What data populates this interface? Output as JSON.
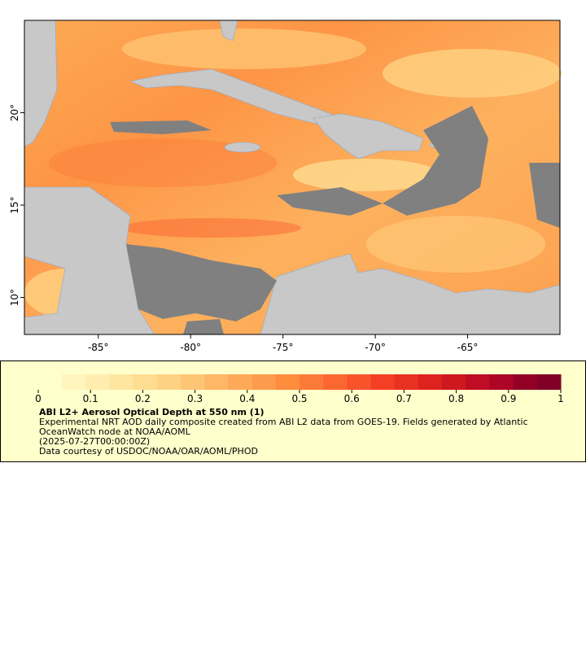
{
  "chart_data": {
    "type": "map",
    "xlim": [
      -89,
      -60
    ],
    "ylim": [
      8,
      25
    ],
    "xticks": [
      {
        "value": -85,
        "label": "-85°"
      },
      {
        "value": -80,
        "label": "-80°"
      },
      {
        "value": -75,
        "label": "-75°"
      },
      {
        "value": -70,
        "label": "-70°"
      },
      {
        "value": -65,
        "label": "-65°"
      }
    ],
    "yticks": [
      {
        "value": 10,
        "label": "10°"
      },
      {
        "value": 15,
        "label": "15°"
      },
      {
        "value": 20,
        "label": "20°"
      }
    ],
    "colorbar": {
      "lim": [
        0,
        1
      ],
      "ticks": [
        0,
        0.1,
        0.2,
        0.3,
        0.4,
        0.5,
        0.6,
        0.7,
        0.8,
        0.9,
        1
      ],
      "colors": [
        "#ffffcc",
        "#fff5bd",
        "#ffedaf",
        "#fee5a0",
        "#fedc91",
        "#fed283",
        "#fec574",
        "#feb766",
        "#fea957",
        "#fd9b4c",
        "#fd8d3c",
        "#fc7a37",
        "#fc6731",
        "#f9532c",
        "#f43f26",
        "#e93122",
        "#de221e",
        "#cf1720",
        "#be0d24",
        "#ac0526",
        "#920026",
        "#800026"
      ]
    },
    "title": "ABI L2+ Aerosol Optical Depth at 550 nm (1)",
    "description": "Experimental NRT AOD daily composite created from ABI L2 data from GOES-19. Fields generated by Atlantic OceanWatch node at NOAA/AOML",
    "time": "(2025-07-27T00:00:00Z)",
    "credit": "Data courtesy of USDOC/NOAA/OAR/AOML/PHOD"
  }
}
